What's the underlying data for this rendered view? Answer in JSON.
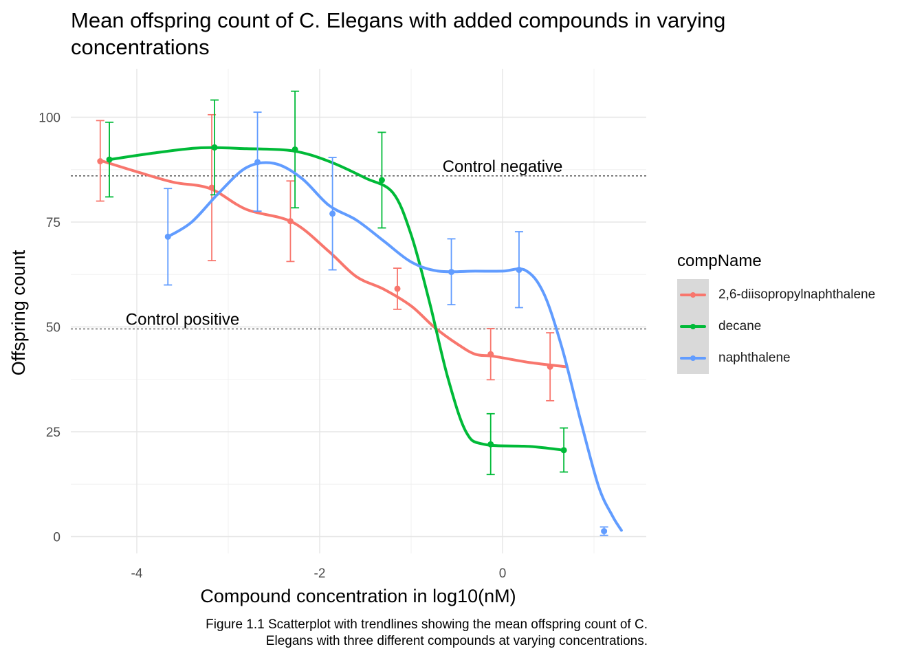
{
  "chart_data": {
    "type": "scatter",
    "title": "Mean offspring count of C. Elegans with added compounds in varying concentrations",
    "xlabel": "Compound concentration in log10(nM)",
    "ylabel": "Offspring count",
    "caption_lines": [
      "Figure 1.1 Scatterplot with trendlines showing the mean offspring count of C.",
      "Elegans with three different compounds at varying concentrations."
    ],
    "xlim": [
      -4.7,
      1.6
    ],
    "ylim": [
      -4,
      110
    ],
    "x_ticks": [
      -4,
      -2,
      0
    ],
    "x_tick_labels": [
      "-4",
      "-2",
      "0"
    ],
    "y_ticks": [
      0,
      25,
      50,
      75,
      100
    ],
    "y_tick_labels": [
      "0",
      "25",
      "50",
      "75",
      "100"
    ],
    "grid": true,
    "legend_title": "compName",
    "legend_position": "right",
    "reference_lines": [
      {
        "label": "Control negative",
        "y": 86,
        "label_x": 0.0
      },
      {
        "label": "Control positive",
        "y": 49.5,
        "label_x": -3.5
      }
    ],
    "series": [
      {
        "name": "2,6-diisopropylnaphthalene",
        "color": "#F8766D",
        "points": [
          {
            "x": -4.4,
            "y": 89.5,
            "ymin": 80,
            "ymax": 99.2
          },
          {
            "x": -3.18,
            "y": 83.2,
            "ymin": 65.8,
            "ymax": 100.6
          },
          {
            "x": -2.32,
            "y": 75.2,
            "ymin": 65.6,
            "ymax": 84.8
          },
          {
            "x": -1.15,
            "y": 59.1,
            "ymin": 54.2,
            "ymax": 64.0
          },
          {
            "x": -0.13,
            "y": 43.5,
            "ymin": 37.4,
            "ymax": 49.6
          },
          {
            "x": 0.52,
            "y": 40.5,
            "ymin": 32.4,
            "ymax": 48.6
          }
        ],
        "trend": [
          [
            -4.4,
            89.7
          ],
          [
            -4.0,
            87.0
          ],
          [
            -3.6,
            84.5
          ],
          [
            -3.2,
            83.0
          ],
          [
            -2.8,
            78.0
          ],
          [
            -2.3,
            75.0
          ],
          [
            -1.9,
            68.0
          ],
          [
            -1.6,
            62.0
          ],
          [
            -1.3,
            59.0
          ],
          [
            -1.0,
            55.0
          ],
          [
            -0.75,
            50.0
          ],
          [
            -0.5,
            46.0
          ],
          [
            -0.3,
            43.5
          ],
          [
            -0.1,
            43.0
          ],
          [
            0.3,
            41.5
          ],
          [
            0.7,
            40.5
          ]
        ]
      },
      {
        "name": "decane",
        "color": "#00BA38",
        "points": [
          {
            "x": -4.3,
            "y": 89.9,
            "ymin": 81.0,
            "ymax": 98.8
          },
          {
            "x": -3.15,
            "y": 92.8,
            "ymin": 81.5,
            "ymax": 104.1
          },
          {
            "x": -2.27,
            "y": 92.3,
            "ymin": 78.4,
            "ymax": 106.2
          },
          {
            "x": -1.32,
            "y": 85.0,
            "ymin": 73.6,
            "ymax": 96.4
          },
          {
            "x": -0.13,
            "y": 22.0,
            "ymin": 14.8,
            "ymax": 29.3
          },
          {
            "x": 0.67,
            "y": 20.6,
            "ymin": 15.4,
            "ymax": 25.9
          }
        ],
        "trend": [
          [
            -4.3,
            89.9
          ],
          [
            -3.8,
            91.5
          ],
          [
            -3.3,
            92.7
          ],
          [
            -2.8,
            92.5
          ],
          [
            -2.3,
            92.0
          ],
          [
            -1.9,
            89.5
          ],
          [
            -1.5,
            85.5
          ],
          [
            -1.2,
            82.0
          ],
          [
            -1.0,
            72.0
          ],
          [
            -0.8,
            56.0
          ],
          [
            -0.6,
            38.0
          ],
          [
            -0.4,
            25.0
          ],
          [
            -0.2,
            22.0
          ],
          [
            0.3,
            21.5
          ],
          [
            0.67,
            20.6
          ]
        ]
      },
      {
        "name": "naphthalene",
        "color": "#619CFF",
        "points": [
          {
            "x": -3.66,
            "y": 71.5,
            "ymin": 60.0,
            "ymax": 83.0
          },
          {
            "x": -2.68,
            "y": 89.3,
            "ymin": 77.6,
            "ymax": 101.2
          },
          {
            "x": -1.86,
            "y": 77.0,
            "ymin": 63.6,
            "ymax": 90.4
          },
          {
            "x": -0.56,
            "y": 63.1,
            "ymin": 55.3,
            "ymax": 71.0
          },
          {
            "x": 0.18,
            "y": 63.6,
            "ymin": 54.6,
            "ymax": 72.7
          },
          {
            "x": 1.11,
            "y": 1.3,
            "ymin": 0.3,
            "ymax": 2.3
          }
        ],
        "trend": [
          [
            -3.66,
            71.5
          ],
          [
            -3.4,
            75.0
          ],
          [
            -3.1,
            82.0
          ],
          [
            -2.8,
            88.0
          ],
          [
            -2.5,
            89.0
          ],
          [
            -2.2,
            85.5
          ],
          [
            -1.9,
            79.0
          ],
          [
            -1.6,
            75.5
          ],
          [
            -1.3,
            70.5
          ],
          [
            -1.0,
            65.5
          ],
          [
            -0.7,
            63.3
          ],
          [
            -0.3,
            63.3
          ],
          [
            0.0,
            63.3
          ],
          [
            0.25,
            63.5
          ],
          [
            0.45,
            58.0
          ],
          [
            0.65,
            45.0
          ],
          [
            0.85,
            28.0
          ],
          [
            1.05,
            12.0
          ],
          [
            1.2,
            5.0
          ],
          [
            1.3,
            1.5
          ]
        ]
      }
    ]
  }
}
